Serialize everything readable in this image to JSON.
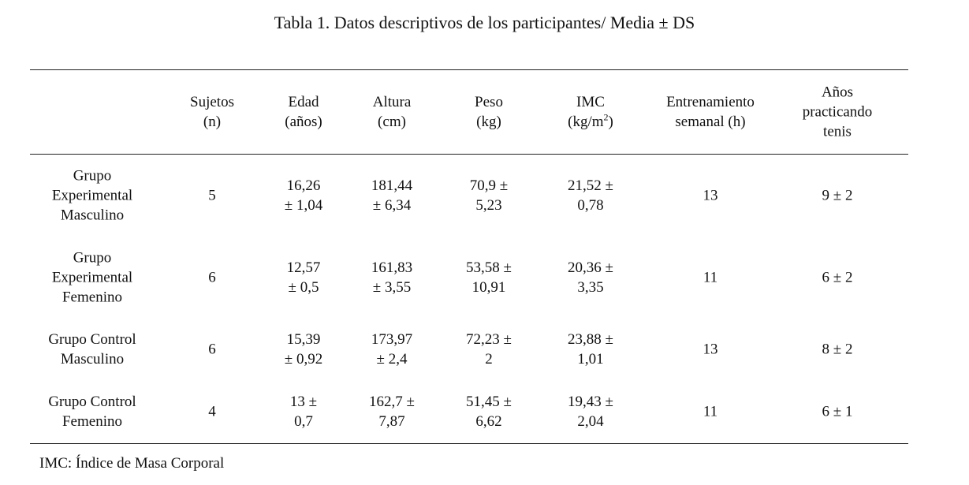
{
  "header": {
    "title": "Tabla 1. Datos descriptivos de los participantes/ Media ± DS"
  },
  "table": {
    "columns": [
      [
        "Sujetos",
        "(n)"
      ],
      [
        "Edad",
        "(años)"
      ],
      [
        "Altura",
        "(cm)"
      ],
      [
        "Peso",
        "(kg)"
      ],
      [
        "IMC",
        {
          "base": "(kg/m",
          "sup": "2",
          "tail": ")"
        }
      ],
      [
        "Entrenamiento",
        "semanal (h)"
      ],
      [
        "Años",
        "practicando",
        "tenis"
      ]
    ],
    "rows": [
      [
        [
          "Grupo",
          "Experimental",
          "Masculino"
        ],
        [
          "5"
        ],
        [
          "16,26",
          "± 1,04"
        ],
        [
          "181,44",
          "± 6,34"
        ],
        [
          "70,9 ±",
          "5,23"
        ],
        [
          "21,52 ±",
          "0,78"
        ],
        [
          "13"
        ],
        [
          "9 ± 2"
        ]
      ],
      [
        [
          "Grupo",
          "Experimental",
          "Femenino"
        ],
        [
          "6"
        ],
        [
          "12,57",
          "± 0,5"
        ],
        [
          "161,83",
          "± 3,55"
        ],
        [
          "53,58 ±",
          "10,91"
        ],
        [
          "20,36 ±",
          "3,35"
        ],
        [
          "11"
        ],
        [
          "6 ± 2"
        ]
      ],
      [
        [
          "Grupo Control",
          "Masculino"
        ],
        [
          "6"
        ],
        [
          "15,39",
          "± 0,92"
        ],
        [
          "173,97",
          "± 2,4"
        ],
        [
          "72,23 ±",
          "2"
        ],
        [
          "23,88 ±",
          "1,01"
        ],
        [
          "13"
        ],
        [
          "8 ± 2"
        ]
      ],
      [
        [
          "Grupo Control",
          "Femenino"
        ],
        [
          "4"
        ],
        [
          "13 ±",
          "0,7"
        ],
        [
          "162,7 ±",
          "7,87"
        ],
        [
          "51,45 ±",
          "6,62"
        ],
        [
          "19,43 ±",
          "2,04"
        ],
        [
          "11"
        ],
        [
          "6 ± 1"
        ]
      ]
    ],
    "footnote": "IMC: Índice de Masa Corporal"
  }
}
